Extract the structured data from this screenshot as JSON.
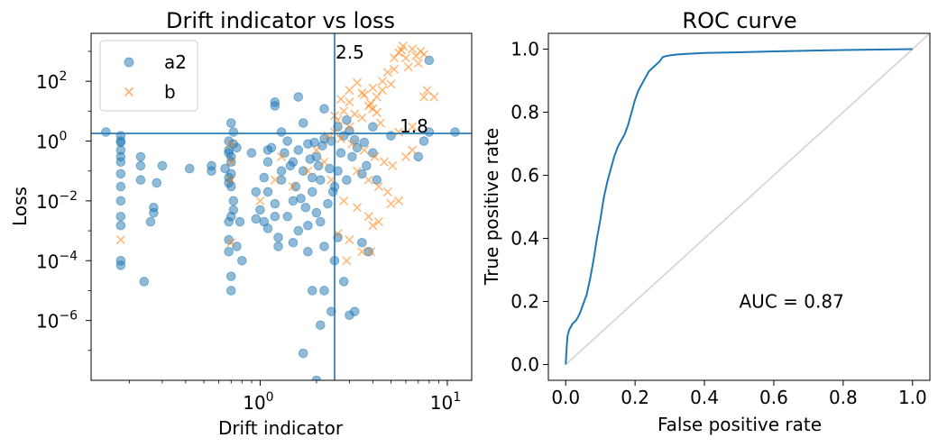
{
  "colors": {
    "a2": "#1f77b4",
    "b": "#ff7f0e",
    "diag": "#d3d3d3",
    "roc": "#1f77b4",
    "refline": "#1f77b4"
  },
  "chart_data": [
    {
      "type": "scatter",
      "title": "Drift indicator vs loss",
      "xlabel": "Drift indicator",
      "ylabel": "Loss",
      "xscale": "log",
      "yscale": "log",
      "xlim": [
        0.125,
        13.5
      ],
      "ylim": [
        1e-08,
        4000
      ],
      "xticks": [
        {
          "value": 1,
          "base": "10",
          "exp": "0"
        },
        {
          "value": 10,
          "base": "10",
          "exp": "1"
        }
      ],
      "yticks": [
        {
          "value": 1e-06,
          "base": "10",
          "exp": "−6"
        },
        {
          "value": 0.0001,
          "base": "10",
          "exp": "−4"
        },
        {
          "value": 0.01,
          "base": "10",
          "exp": "−2"
        },
        {
          "value": 1,
          "base": "10",
          "exp": "0"
        },
        {
          "value": 100,
          "base": "10",
          "exp": "2"
        }
      ],
      "legend": {
        "position": "top-left",
        "entries": [
          "a2",
          "b"
        ]
      },
      "vline": {
        "x": 2.5,
        "label": "2.5"
      },
      "hline": {
        "y": 1.8,
        "label": "1.8"
      },
      "series": [
        {
          "name": "a2",
          "marker": "circle",
          "points": [
            [
              0.15,
              2.0
            ],
            [
              0.18,
              1.5
            ],
            [
              0.18,
              0.9
            ],
            [
              0.18,
              0.5
            ],
            [
              0.18,
              0.2
            ],
            [
              0.18,
              0.08
            ],
            [
              0.18,
              0.03
            ],
            [
              0.18,
              0.01
            ],
            [
              0.18,
              0.003
            ],
            [
              0.18,
              0.0015
            ],
            [
              0.18,
              0.0001
            ],
            [
              0.18,
              7e-05
            ],
            [
              0.18,
              1.0
            ],
            [
              0.18,
              0.3
            ],
            [
              0.23,
              0.3
            ],
            [
              0.23,
              0.05
            ],
            [
              0.23,
              0.15
            ],
            [
              0.26,
              0.002
            ],
            [
              0.27,
              0.006
            ],
            [
              0.27,
              0.004
            ],
            [
              0.28,
              0.04
            ],
            [
              0.3,
              0.15
            ],
            [
              0.24,
              2e-05
            ],
            [
              0.42,
              0.12
            ],
            [
              0.55,
              0.1
            ],
            [
              0.55,
              0.15
            ],
            [
              0.68,
              0.4
            ],
            [
              0.68,
              0.06
            ],
            [
              0.68,
              1.0
            ],
            [
              0.7,
              4.0
            ],
            [
              0.7,
              3e-05
            ],
            [
              0.68,
              0.0005
            ],
            [
              0.7,
              0.08
            ],
            [
              0.72,
              0.01
            ],
            [
              0.7,
              0.003
            ],
            [
              0.68,
              0.0002
            ],
            [
              0.7,
              1e-05
            ],
            [
              0.68,
              0.002
            ],
            [
              0.7,
              0.3
            ],
            [
              0.72,
              2.0
            ],
            [
              0.68,
              0.5
            ],
            [
              0.7,
              0.03
            ],
            [
              0.72,
              0.005
            ],
            [
              0.68,
              0.04
            ],
            [
              0.72,
              0.8
            ],
            [
              0.7,
              0.2
            ],
            [
              0.75,
              0.6
            ],
            [
              0.78,
              0.002
            ],
            [
              0.75,
              0.0003
            ],
            [
              0.8,
              0.0001
            ],
            [
              0.65,
              0.12
            ],
            [
              0.9,
              0.4
            ],
            [
              0.95,
              0.02
            ],
            [
              1.1,
              0.5
            ],
            [
              1.1,
              0.02
            ],
            [
              1.2,
              0.003
            ],
            [
              1.25,
              0.0003
            ],
            [
              1.2,
              15
            ],
            [
              1.2,
              20
            ],
            [
              1.3,
              0.1
            ],
            [
              1.5,
              0.0004
            ],
            [
              1.5,
              0.01
            ],
            [
              1.8,
              0.0002
            ],
            [
              1.9,
              1e-05
            ],
            [
              1.7,
              8e-08
            ],
            [
              2.0,
              1e-08
            ],
            [
              1.6,
              30
            ],
            [
              1.7,
              4
            ],
            [
              1.9,
              0.06
            ],
            [
              2.0,
              0.3
            ],
            [
              2.1,
              7e-07
            ],
            [
              2.4,
              2e-06
            ],
            [
              2.2,
              1e-05
            ],
            [
              3.0,
              1.5e-06
            ],
            [
              3.2,
              2e-06
            ],
            [
              2.5,
              0.0001
            ],
            [
              2.1,
              0.002
            ],
            [
              2.6,
              0.0006
            ],
            [
              1.3,
              2.0
            ],
            [
              1.4,
              1.0
            ],
            [
              1.6,
              0.5
            ],
            [
              1.8,
              0.8
            ],
            [
              2.2,
              1.2
            ],
            [
              2.4,
              1.0
            ],
            [
              2.8,
              1.5
            ],
            [
              3.0,
              2.2
            ],
            [
              3.2,
              1.1
            ],
            [
              1.1,
              0.2
            ],
            [
              1.3,
              0.05
            ],
            [
              1.5,
              0.2
            ],
            [
              1.7,
              0.1
            ],
            [
              1.9,
              0.02
            ],
            [
              2.1,
              0.05
            ],
            [
              2.3,
              0.008
            ],
            [
              2.5,
              0.03
            ],
            [
              1.2,
              0.008
            ],
            [
              1.4,
              0.003
            ],
            [
              1.6,
              0.001
            ],
            [
              1.8,
              0.0015
            ],
            [
              2.0,
              0.004
            ],
            [
              2.2,
              0.0003
            ],
            [
              1.05,
              0.06
            ],
            [
              1.15,
              0.6
            ],
            [
              1.35,
              0.4
            ],
            [
              1.45,
              0.15
            ],
            [
              1.55,
              0.03
            ],
            [
              1.65,
              0.012
            ],
            [
              1.75,
              0.006
            ],
            [
              1.85,
              0.25
            ],
            [
              1.95,
              0.9
            ],
            [
              2.05,
              0.15
            ],
            [
              2.15,
              0.7
            ],
            [
              2.35,
              0.12
            ],
            [
              2.45,
              0.02
            ],
            [
              2.6,
              0.1
            ],
            [
              2.7,
              0.4
            ],
            [
              2.9,
              0.05
            ],
            [
              3.1,
              0.3
            ],
            [
              3.3,
              0.6
            ],
            [
              3.5,
              0.08
            ],
            [
              3.7,
              0.15
            ],
            [
              4.0,
              0.4
            ],
            [
              4.2,
              0.05
            ],
            [
              5.0,
              1.5
            ],
            [
              7.5,
              1.0
            ],
            [
              7.0,
              0.3
            ],
            [
              8.0,
              2.0
            ],
            [
              11.0,
              2.0
            ],
            [
              8.0,
              500
            ],
            [
              3.5,
              0.0004
            ],
            [
              3.8,
              0.0002
            ],
            [
              2.8,
              2e-05
            ],
            [
              1.25,
              0.0006
            ],
            [
              0.95,
              0.0025
            ],
            [
              1.0,
              0.005
            ],
            [
              1.05,
              0.002
            ],
            [
              1.1,
              0.0012
            ],
            [
              2.6,
              3
            ],
            [
              2.9,
              5
            ],
            [
              4.0,
              3
            ],
            [
              3.6,
              0.9
            ],
            [
              2.2,
              12
            ]
          ]
        },
        {
          "name": "b",
          "marker": "x",
          "points": [
            [
              5.5,
              900
            ],
            [
              6.0,
              600
            ],
            [
              6.5,
              1200
            ],
            [
              7.0,
              400
            ],
            [
              7.5,
              800
            ],
            [
              6.2,
              300
            ],
            [
              5.8,
              1500
            ],
            [
              7.2,
              1000
            ],
            [
              4.8,
              200
            ],
            [
              5.2,
              250
            ],
            [
              4.5,
              100
            ],
            [
              4.0,
              60
            ],
            [
              3.5,
              40
            ],
            [
              3.0,
              20
            ],
            [
              2.8,
              10
            ],
            [
              3.2,
              8
            ],
            [
              3.8,
              15
            ],
            [
              4.2,
              30
            ],
            [
              4.5,
              50
            ],
            [
              5.0,
              80
            ],
            [
              2.6,
              5
            ],
            [
              3.0,
              3
            ],
            [
              3.5,
              6
            ],
            [
              4.0,
              12
            ],
            [
              2.5,
              2.0
            ],
            [
              2.7,
              1.2
            ],
            [
              3.1,
              0.8
            ],
            [
              3.6,
              0.5
            ],
            [
              4.1,
              0.3
            ],
            [
              4.6,
              0.2
            ],
            [
              5.1,
              0.15
            ],
            [
              3.3,
              0.1
            ],
            [
              3.8,
              0.05
            ],
            [
              4.3,
              0.03
            ],
            [
              4.8,
              0.02
            ],
            [
              2.8,
              0.01
            ],
            [
              3.3,
              0.006
            ],
            [
              3.8,
              0.003
            ],
            [
              4.3,
              0.002
            ],
            [
              2.6,
              0.0008
            ],
            [
              3.0,
              0.0005
            ],
            [
              3.5,
              0.0002
            ],
            [
              3.9,
              0.0002
            ],
            [
              2.9,
              0.0001
            ],
            [
              4.0,
              0.0015
            ],
            [
              5.0,
              0.008
            ],
            [
              5.5,
              0.01
            ],
            [
              6.0,
              0.3
            ],
            [
              6.5,
              0.5
            ],
            [
              7.5,
              30
            ],
            [
              5.5,
              2.0
            ],
            [
              6.5,
              3.0
            ],
            [
              0.18,
              0.0005
            ],
            [
              0.7,
              0.0004
            ],
            [
              1.2,
              0.05
            ],
            [
              1.5,
              0.03
            ],
            [
              1.8,
              0.1
            ],
            [
              2.0,
              0.5
            ],
            [
              2.2,
              0.2
            ],
            [
              2.4,
              0.05
            ],
            [
              0.7,
              0.2
            ],
            [
              0.7,
              0.05
            ],
            [
              0.7,
              0.8
            ],
            [
              1.0,
              0.01
            ],
            [
              1.3,
              0.3
            ],
            [
              2.3,
              1.5
            ],
            [
              2.5,
              7
            ],
            [
              2.7,
              25
            ],
            [
              3.0,
              50
            ],
            [
              3.3,
              90
            ],
            [
              3.6,
              35
            ],
            [
              3.9,
              18
            ],
            [
              4.2,
              9
            ],
            [
              4.4,
              4
            ],
            [
              5.2,
              600
            ],
            [
              5.7,
              1100
            ],
            [
              6.8,
              700
            ],
            [
              7.8,
              50
            ],
            [
              8.5,
              30
            ]
          ]
        }
      ]
    },
    {
      "type": "line",
      "title": "ROC curve",
      "xlabel": "False positive rate",
      "ylabel": "True positive rate",
      "xlim": [
        -0.05,
        1.05
      ],
      "ylim": [
        -0.05,
        1.05
      ],
      "xticks": [
        "0.0",
        "0.2",
        "0.4",
        "0.6",
        "0.8",
        "1.0"
      ],
      "yticks": [
        "0.0",
        "0.2",
        "0.4",
        "0.6",
        "0.8",
        "1.0"
      ],
      "annotation": {
        "text": "AUC = 0.87",
        "x": 0.5,
        "y": 0.2
      },
      "diagonal": true,
      "series": [
        {
          "name": "ROC",
          "x": [
            0,
            0.002,
            0.005,
            0.01,
            0.015,
            0.02,
            0.03,
            0.04,
            0.05,
            0.06,
            0.07,
            0.08,
            0.09,
            0.1,
            0.11,
            0.12,
            0.13,
            0.14,
            0.15,
            0.16,
            0.17,
            0.18,
            0.19,
            0.2,
            0.21,
            0.22,
            0.23,
            0.24,
            0.25,
            0.26,
            0.27,
            0.28,
            0.29,
            0.3,
            0.32,
            0.35,
            0.4,
            0.5,
            0.6,
            0.8,
            1.0
          ],
          "y": [
            0,
            0.04,
            0.09,
            0.11,
            0.12,
            0.13,
            0.14,
            0.16,
            0.19,
            0.22,
            0.27,
            0.33,
            0.4,
            0.46,
            0.53,
            0.58,
            0.62,
            0.66,
            0.69,
            0.71,
            0.73,
            0.76,
            0.8,
            0.84,
            0.87,
            0.89,
            0.91,
            0.93,
            0.94,
            0.95,
            0.96,
            0.975,
            0.978,
            0.98,
            0.983,
            0.985,
            0.988,
            0.99,
            0.993,
            0.997,
            1.0
          ]
        }
      ]
    }
  ]
}
